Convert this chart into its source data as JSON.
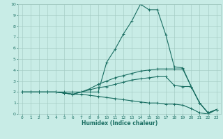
{
  "xlabel": "Humidex (Indice chaleur)",
  "bg_color": "#c8ece6",
  "grid_color": "#a0c8c0",
  "line_color": "#1a6e62",
  "xlim": [
    -0.5,
    23.5
  ],
  "ylim": [
    0,
    10
  ],
  "xticks": [
    0,
    1,
    2,
    3,
    4,
    5,
    6,
    7,
    8,
    9,
    10,
    11,
    12,
    13,
    14,
    15,
    16,
    17,
    18,
    19,
    20,
    21,
    22,
    23
  ],
  "yticks": [
    0,
    1,
    2,
    3,
    4,
    5,
    6,
    7,
    8,
    9,
    10
  ],
  "lines": [
    {
      "x": [
        0,
        1,
        2,
        3,
        4,
        5,
        6,
        7,
        8,
        9,
        10,
        11,
        12,
        13,
        14,
        15,
        16,
        17,
        18,
        19,
        20,
        21,
        22,
        23
      ],
      "y": [
        2,
        2,
        2,
        2,
        2,
        2,
        2,
        2,
        2,
        2,
        4.7,
        5.9,
        7.3,
        8.5,
        10,
        9.5,
        9.5,
        7.2,
        4.3,
        4.2,
        2.5,
        1.0,
        0.1,
        0.4
      ]
    },
    {
      "x": [
        0,
        1,
        2,
        3,
        4,
        5,
        6,
        7,
        8,
        9,
        10,
        11,
        12,
        13,
        14,
        15,
        16,
        17,
        18,
        19,
        20,
        21,
        22,
        23
      ],
      "y": [
        2,
        2,
        2,
        2,
        2,
        1.9,
        1.8,
        2.0,
        2.3,
        2.7,
        3.0,
        3.3,
        3.5,
        3.7,
        3.9,
        4.0,
        4.1,
        4.1,
        4.1,
        4.1,
        2.5,
        1.0,
        0.1,
        0.4
      ]
    },
    {
      "x": [
        0,
        1,
        2,
        3,
        4,
        5,
        6,
        7,
        8,
        9,
        10,
        11,
        12,
        13,
        14,
        15,
        16,
        17,
        18,
        19,
        20,
        21,
        22,
        23
      ],
      "y": [
        2,
        2,
        2,
        2,
        2,
        1.9,
        1.8,
        2.0,
        2.2,
        2.4,
        2.5,
        2.7,
        2.9,
        3.1,
        3.2,
        3.3,
        3.4,
        3.4,
        2.6,
        2.5,
        2.5,
        1.0,
        0.1,
        0.4
      ]
    },
    {
      "x": [
        0,
        1,
        2,
        3,
        4,
        5,
        6,
        7,
        8,
        9,
        10,
        11,
        12,
        13,
        14,
        15,
        16,
        17,
        18,
        19,
        20,
        21,
        22,
        23
      ],
      "y": [
        2,
        2,
        2,
        2,
        2,
        1.9,
        1.8,
        1.8,
        1.7,
        1.6,
        1.5,
        1.4,
        1.3,
        1.2,
        1.1,
        1.0,
        1.0,
        0.9,
        0.9,
        0.8,
        0.5,
        0.1,
        0.0,
        0.4
      ]
    }
  ]
}
